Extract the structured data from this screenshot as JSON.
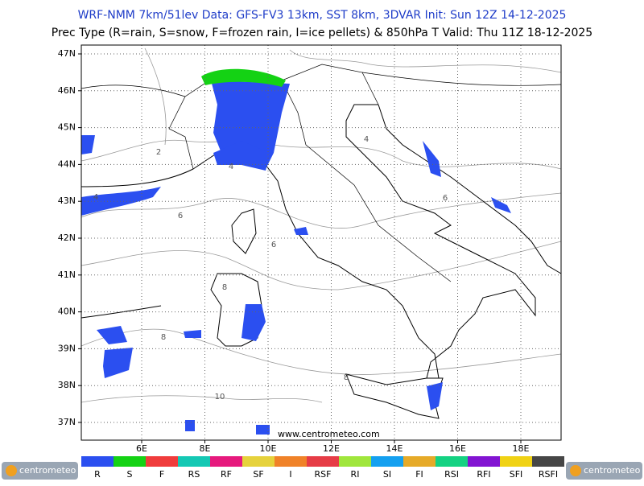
{
  "header": {
    "line1": "WRF-NMM 7km/51lev  Data: GFS-FV3 13km, SST 8km, 3DVAR  Init: Sun 12Z 14-12-2025",
    "line2": "Prec Type (R=rain, S=snow, F=frozen rain, I=ice pellets) & 850hPa T  Valid: Thu 11Z 18-12-2025"
  },
  "map": {
    "lat_labels": [
      "47N",
      "46N",
      "45N",
      "44N",
      "43N",
      "42N",
      "41N",
      "40N",
      "39N",
      "38N",
      "37N"
    ],
    "lon_labels": [
      "6E",
      "8E",
      "10E",
      "12E",
      "14E",
      "16E",
      "18E"
    ],
    "contour_labels": [
      "2",
      "4",
      "4",
      "4",
      "6",
      "6",
      "6",
      "8",
      "8",
      "8",
      "10"
    ],
    "watermark": "www.centrometeo.com"
  },
  "legend": [
    {
      "label": "R",
      "color": "#2b4ff0"
    },
    {
      "label": "S",
      "color": "#14d214"
    },
    {
      "label": "F",
      "color": "#f03c3c"
    },
    {
      "label": "RS",
      "color": "#14c8b4"
    },
    {
      "label": "RF",
      "color": "#e6197d"
    },
    {
      "label": "SF",
      "color": "#e6d23c"
    },
    {
      "label": "I",
      "color": "#f08228"
    },
    {
      "label": "RSF",
      "color": "#e63c46"
    },
    {
      "label": "RI",
      "color": "#a0e63c"
    },
    {
      "label": "SI",
      "color": "#14a0f0"
    },
    {
      "label": "FI",
      "color": "#e6aa28"
    },
    {
      "label": "RSI",
      "color": "#14d282"
    },
    {
      "label": "RFI",
      "color": "#8214d2"
    },
    {
      "label": "SFI",
      "color": "#f0d214"
    },
    {
      "label": "RSFI",
      "color": "#464646"
    }
  ],
  "logos": [
    "centrometeo",
    "centrometeo"
  ]
}
